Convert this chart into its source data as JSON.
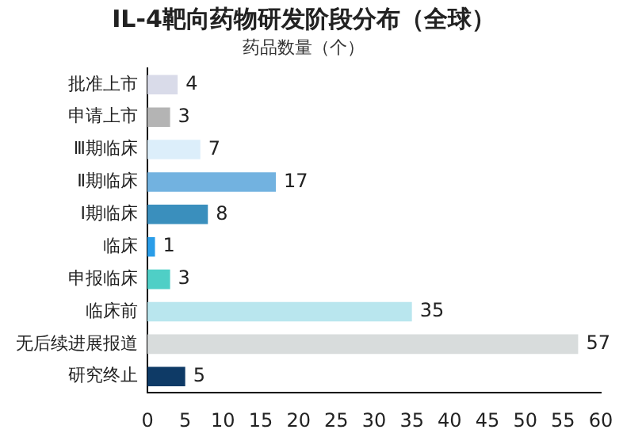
{
  "chart_data": {
    "type": "bar",
    "orientation": "horizontal",
    "title": "IL-4靶向药物研发阶段分布（全球）",
    "xlabel": "药品数量（个）",
    "categories": [
      "批准上市",
      "申请上市",
      "Ⅲ期临床",
      "Ⅱ期临床",
      "Ⅰ期临床",
      "临床",
      "申报临床",
      "临床前",
      "无后续进展报道",
      "研究终止"
    ],
    "values": [
      4,
      3,
      7,
      17,
      8,
      1,
      3,
      35,
      57,
      5
    ],
    "colors": [
      "#d9dbe9",
      "#b4b4b4",
      "#dceefa",
      "#72b2e0",
      "#3a8fbd",
      "#2a9de8",
      "#4fcfc6",
      "#b9e6ee",
      "#d8dcdc",
      "#0e3a66"
    ],
    "xlim": [
      0,
      60
    ],
    "xticks": [
      0,
      5,
      10,
      15,
      20,
      25,
      30,
      35,
      40,
      45,
      50,
      55,
      60
    ],
    "grid": false,
    "legend": false,
    "data_labels": true
  }
}
